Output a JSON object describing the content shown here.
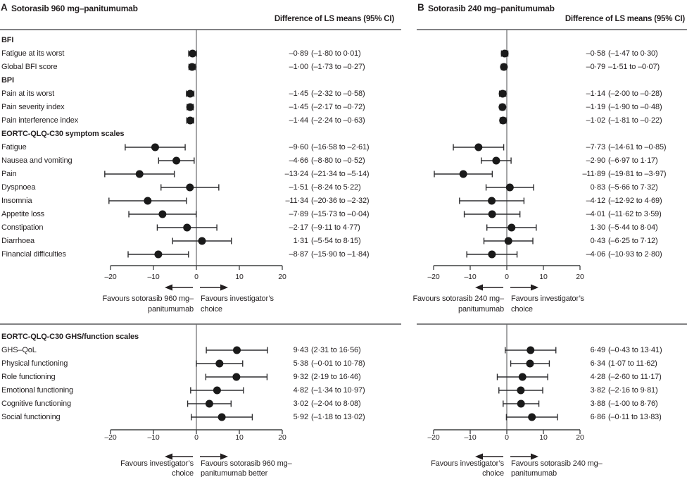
{
  "figure": {
    "panel_a": {
      "letter": "A",
      "title": "Sotorasib 960 mg–panitumumab",
      "col_header": "Difference of LS means (95% CI)"
    },
    "panel_b": {
      "letter": "B",
      "title": "Sotorasib 240 mg–panitumumab",
      "col_header": "Difference of LS means (95% CI)"
    }
  },
  "chart_data": {
    "type": "forest",
    "xlim": [
      -20,
      20
    ],
    "x_ticks": [
      -20,
      -10,
      0,
      10,
      20
    ],
    "x_tick_labels": [
      "–20",
      "–10",
      "0",
      "10",
      "20"
    ],
    "panels": [
      {
        "id": "A",
        "title": "Sotorasib 960 mg–panitumumab"
      },
      {
        "id": "B",
        "title": "Sotorasib 240 mg–panitumumab"
      }
    ],
    "sections": [
      {
        "id": "top",
        "rows": [
          {
            "label": "BFI",
            "header": true
          },
          {
            "label": "Fatigue at its worst",
            "A": {
              "est": -0.89,
              "lo": -1.8,
              "hi": 0.01,
              "text": "–0·89 (–1·80 to 0·01)"
            },
            "B": {
              "est": -0.58,
              "lo": -1.47,
              "hi": 0.3,
              "text": "–0·58 (–1·47 to 0·30)"
            }
          },
          {
            "label": "Global BFI score",
            "A": {
              "est": -1.0,
              "lo": -1.73,
              "hi": -0.27,
              "text": "–1·00 (–1·73 to –0·27)"
            },
            "B": {
              "est": -0.79,
              "lo": -1.51,
              "hi": -0.07,
              "text": "–0·79 –1·51 to –0·07)"
            }
          },
          {
            "label": "BPI",
            "header": true
          },
          {
            "label": "Pain at its worst",
            "A": {
              "est": -1.45,
              "lo": -2.32,
              "hi": -0.58,
              "text": "–1·45 (–2·32 to –0·58)"
            },
            "B": {
              "est": -1.14,
              "lo": -2.0,
              "hi": -0.28,
              "text": "–1·14 (–2·00 to –0·28)"
            }
          },
          {
            "label": "Pain severity index",
            "A": {
              "est": -1.45,
              "lo": -2.17,
              "hi": -0.72,
              "text": "–1·45 (–2·17 to –0·72)"
            },
            "B": {
              "est": -1.19,
              "lo": -1.9,
              "hi": -0.48,
              "text": "–1·19 (–1·90 to –0·48)"
            }
          },
          {
            "label": "Pain interference index",
            "A": {
              "est": -1.44,
              "lo": -2.24,
              "hi": -0.63,
              "text": "–1·44 (–2·24 to –0·63)"
            },
            "B": {
              "est": -1.02,
              "lo": -1.81,
              "hi": -0.22,
              "text": "–1·02 (–1·81 to –0·22)"
            }
          },
          {
            "label": "EORTC-QLQ-C30 symptom scales",
            "header": true
          },
          {
            "label": "Fatigue",
            "A": {
              "est": -9.6,
              "lo": -16.58,
              "hi": -2.61,
              "text": "–9·60 (–16·58 to –2·61)"
            },
            "B": {
              "est": -7.73,
              "lo": -14.61,
              "hi": -0.85,
              "text": "–7·73 (–14·61 to –0·85)"
            }
          },
          {
            "label": "Nausea and vomiting",
            "A": {
              "est": -4.66,
              "lo": -8.8,
              "hi": -0.52,
              "text": "–4·66 (–8·80 to –0·52)"
            },
            "B": {
              "est": -2.9,
              "lo": -6.97,
              "hi": 1.17,
              "text": "–2·90 (–6·97 to 1·17)"
            }
          },
          {
            "label": "Pain",
            "A": {
              "est": -13.24,
              "lo": -21.34,
              "hi": -5.14,
              "text": "–13·24 (–21·34 to –5·14)"
            },
            "B": {
              "est": -11.89,
              "lo": -19.81,
              "hi": -3.97,
              "text": "–11·89 (–19·81 to –3·97)"
            }
          },
          {
            "label": "Dyspnoea",
            "A": {
              "est": -1.51,
              "lo": -8.24,
              "hi": 5.22,
              "text": "–1·51 (–8·24 to 5·22)"
            },
            "B": {
              "est": 0.83,
              "lo": -5.66,
              "hi": 7.32,
              "text": "0·83 (–5·66 to 7·32)"
            }
          },
          {
            "label": "Insomnia",
            "A": {
              "est": -11.34,
              "lo": -20.36,
              "hi": -2.32,
              "text": "–11·34 (–20·36 to –2·32)"
            },
            "B": {
              "est": -4.12,
              "lo": -12.92,
              "hi": 4.69,
              "text": "–4·12 (–12·92 to 4·69)"
            }
          },
          {
            "label": "Appetite loss",
            "A": {
              "est": -7.89,
              "lo": -15.73,
              "hi": -0.04,
              "text": "–7·89 (–15·73 to –0·04)"
            },
            "B": {
              "est": -4.01,
              "lo": -11.62,
              "hi": 3.59,
              "text": "–4·01 (–11·62 to 3·59)"
            }
          },
          {
            "label": "Constipation",
            "A": {
              "est": -2.17,
              "lo": -9.11,
              "hi": 4.77,
              "text": "–2·17 (–9·11 to 4·77)"
            },
            "B": {
              "est": 1.3,
              "lo": -5.44,
              "hi": 8.04,
              "text": "1·30 (–5·44 to 8·04)"
            }
          },
          {
            "label": "Diarrhoea",
            "A": {
              "est": 1.31,
              "lo": -5.54,
              "hi": 8.15,
              "text": "1·31 (–5·54 to 8·15)"
            },
            "B": {
              "est": 0.43,
              "lo": -6.25,
              "hi": 7.12,
              "text": "0·43 (–6·25 to 7·12)"
            }
          },
          {
            "label": "Financial difficulties",
            "A": {
              "est": -8.87,
              "lo": -15.9,
              "hi": -1.84,
              "text": "–8·87 (–15·90 to –1·84)"
            },
            "B": {
              "est": -4.06,
              "lo": -10.93,
              "hi": 2.8,
              "text": "–4·06 (–10·93 to 2·80)"
            }
          }
        ],
        "favours": {
          "A": {
            "left": [
              "Favours sotorasib 960 mg–",
              "panitumumab"
            ],
            "right": [
              "Favours investigator’s",
              "choice"
            ]
          },
          "B": {
            "left": [
              "Favours sotorasib 240 mg–",
              "panitumumab"
            ],
            "right": [
              "Favours investigator’s",
              "choice"
            ]
          }
        }
      },
      {
        "id": "bottom",
        "rows": [
          {
            "label": "EORTC-QLQ-C30 GHS/function scales",
            "header": true
          },
          {
            "label": "GHS–QoL",
            "A": {
              "est": 9.43,
              "lo": 2.31,
              "hi": 16.56,
              "text": "9·43 (2·31 to 16·56)"
            },
            "B": {
              "est": 6.49,
              "lo": -0.43,
              "hi": 13.41,
              "text": "6·49 (–0·43 to 13·41)"
            }
          },
          {
            "label": "Physical functioning",
            "A": {
              "est": 5.38,
              "lo": -0.01,
              "hi": 10.78,
              "text": "5·38 (–0·01 to 10·78)"
            },
            "B": {
              "est": 6.34,
              "lo": 1.07,
              "hi": 11.62,
              "text": "6·34 (1·07 to 11·62)"
            }
          },
          {
            "label": "Role functioning",
            "A": {
              "est": 9.32,
              "lo": 2.19,
              "hi": 16.46,
              "text": "9·32 (2·19 to 16·46)"
            },
            "B": {
              "est": 4.28,
              "lo": -2.6,
              "hi": 11.17,
              "text": "4·28 (–2·60 to 11·17)"
            }
          },
          {
            "label": "Emotional functioning",
            "A": {
              "est": 4.82,
              "lo": -1.34,
              "hi": 10.97,
              "text": "4·82 (–1·34 to 10·97)"
            },
            "B": {
              "est": 3.82,
              "lo": -2.16,
              "hi": 9.81,
              "text": "3·82 (–2·16 to 9·81)"
            }
          },
          {
            "label": "Cognitive functioning",
            "A": {
              "est": 3.02,
              "lo": -2.04,
              "hi": 8.08,
              "text": "3·02 (–2·04 to 8·08)"
            },
            "B": {
              "est": 3.88,
              "lo": -1.0,
              "hi": 8.76,
              "text": "3·88 (–1·00 to 8·76)"
            }
          },
          {
            "label": "Social functioning",
            "A": {
              "est": 5.92,
              "lo": -1.18,
              "hi": 13.02,
              "text": "5·92 (–1·18 to 13·02)"
            },
            "B": {
              "est": 6.86,
              "lo": -0.11,
              "hi": 13.83,
              "text": "6·86 (–0·11 to 13·83)"
            }
          }
        ],
        "favours": {
          "A": {
            "left": [
              "Favours investigator’s",
              "choice"
            ],
            "right": [
              "Favours sotorasib 960 mg–",
              "panitumumab better"
            ]
          },
          "B": {
            "left": [
              "Favours investigator’s",
              "choice"
            ],
            "right": [
              "Favours sotorasib 240 mg–",
              "panitumumab"
            ]
          }
        }
      }
    ],
    "colors": {
      "text": "#231f20",
      "divider": "#58595b",
      "zero_line": "#6a6b6d",
      "axis": "#3f4041",
      "ci_line": "#2e2e30",
      "point": "#1a1a1a"
    }
  }
}
